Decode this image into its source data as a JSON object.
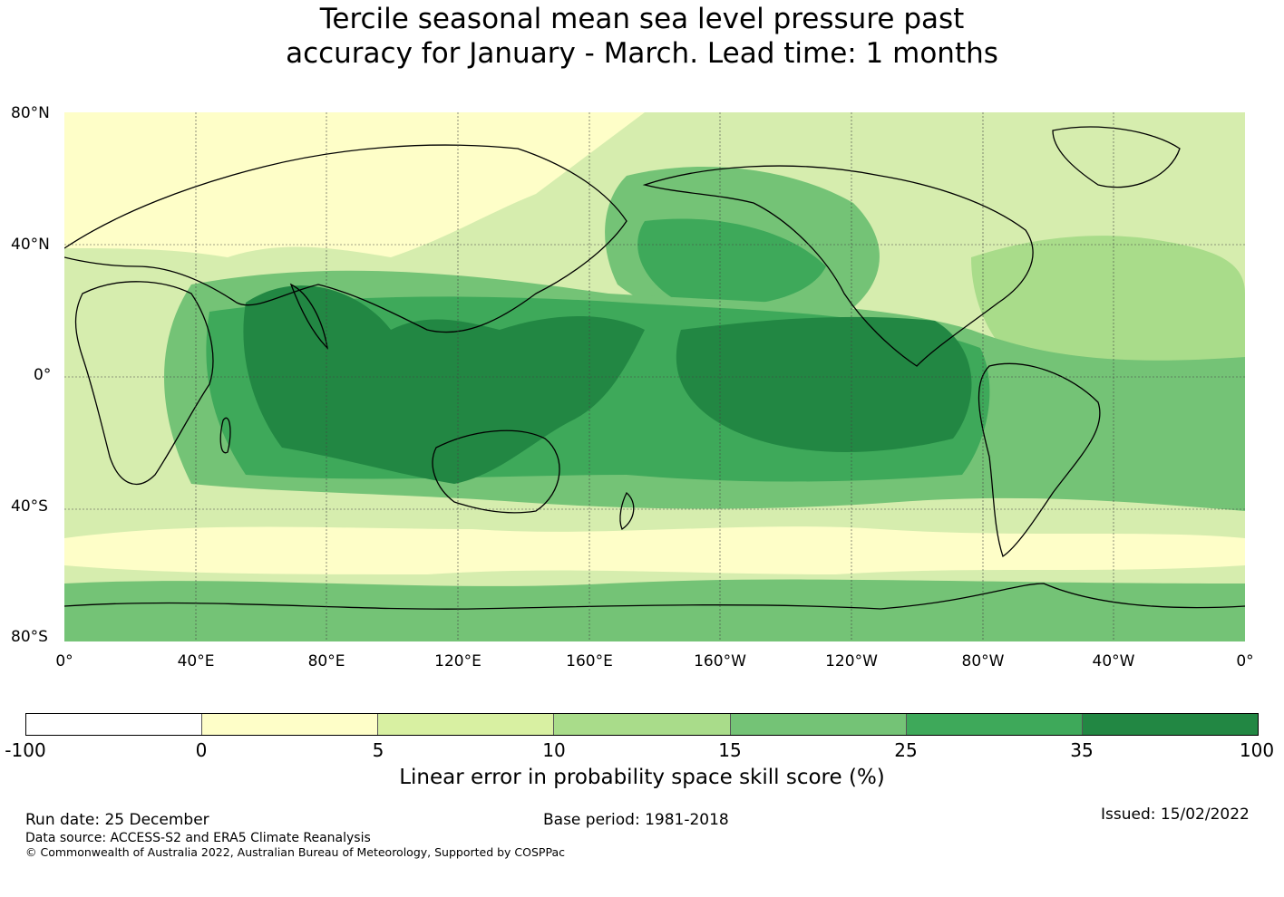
{
  "title": {
    "line1": "Tercile seasonal mean sea level pressure past",
    "line2": "accuracy for January - March. Lead time: 1 months"
  },
  "map": {
    "lat_labels": [
      "80°N",
      "40°N",
      "0°",
      "40°S",
      "80°S"
    ],
    "lon_labels": [
      "0°",
      "40°E",
      "80°E",
      "120°E",
      "160°E",
      "160°W",
      "120°W",
      "80°W",
      "40°W",
      "0°"
    ],
    "central_longitude": 180,
    "ocean_background": "#d6edae"
  },
  "colorbar": {
    "ticks": [
      "-100",
      "0",
      "5",
      "10",
      "15",
      "25",
      "35",
      "100"
    ],
    "colors": [
      "#ffffff",
      "#fefec8",
      "#d8f0a2",
      "#a9dc8a",
      "#74c376",
      "#3ea95a",
      "#228743"
    ],
    "label": "Linear error in probability space skill score (%)"
  },
  "footer": {
    "run_date": "Run date: 25 December",
    "base_period": "Base period: 1981-2018",
    "issued": "Issued: 15/02/2022",
    "data_source": "Data source: ACCESS-S2 and ERA5 Climate Reanalysis",
    "copyright": "© Commonwealth of Australia 2022, Australian Bureau of Meteorology, Supported by COSPPac"
  }
}
